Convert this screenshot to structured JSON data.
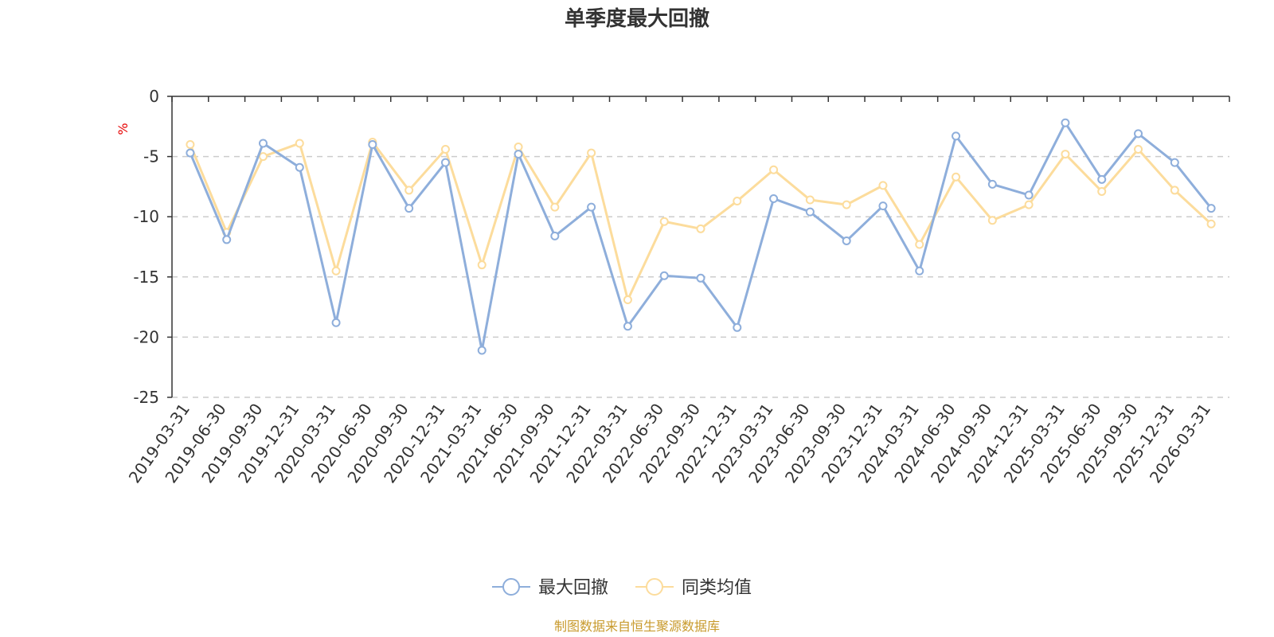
{
  "chart_data": {
    "type": "line",
    "title": "单季度最大回撤",
    "ylabel": "%",
    "ylim": [
      -25,
      0
    ],
    "yticks": [
      0,
      -5,
      -10,
      -15,
      -20,
      -25
    ],
    "grid": true,
    "legend_placement": "bottom-center",
    "categories": [
      "2019-03-31",
      "2019-06-30",
      "2019-09-30",
      "2019-12-31",
      "2020-03-31",
      "2020-06-30",
      "2020-09-30",
      "2020-12-31",
      "2021-03-31",
      "2021-06-30",
      "2021-09-30",
      "2021-12-31",
      "2022-03-31",
      "2022-06-30",
      "2022-09-30",
      "2022-12-31",
      "2023-03-31",
      "2023-06-30",
      "2023-09-30",
      "2023-12-31",
      "2024-03-31",
      "2024-06-30",
      "2024-09-30",
      "2024-12-31",
      "2025-03-31",
      "2025-06-30",
      "2025-09-30",
      "2025-12-31",
      "2026-03-31"
    ],
    "series": [
      {
        "name": "最大回撤",
        "color": "#8eaedb",
        "values": [
          -4.7,
          -11.9,
          -3.9,
          -5.9,
          -18.8,
          -4.0,
          -9.3,
          -5.5,
          -21.1,
          -4.8,
          -11.6,
          -9.2,
          -19.1,
          -14.9,
          -15.1,
          -19.2,
          -8.5,
          -9.6,
          -12.0,
          -9.1,
          -14.5,
          -3.3,
          -7.3,
          -8.2,
          -2.2,
          -6.9,
          -3.1,
          -5.5,
          -9.3
        ]
      },
      {
        "name": "同类均值",
        "color": "#fcdc9c",
        "values": [
          -4.0,
          -11.3,
          -5.0,
          -3.9,
          -14.5,
          -3.8,
          -7.8,
          -4.4,
          -14.0,
          -4.2,
          -9.2,
          -4.7,
          -16.9,
          -10.4,
          -11.0,
          -8.7,
          -6.1,
          -8.6,
          -9.0,
          -7.4,
          -12.3,
          -6.7,
          -10.3,
          -9.0,
          -4.8,
          -7.9,
          -4.4,
          -7.8,
          -10.6
        ]
      }
    ],
    "source_note": "制图数据来自恒生聚源数据库"
  }
}
